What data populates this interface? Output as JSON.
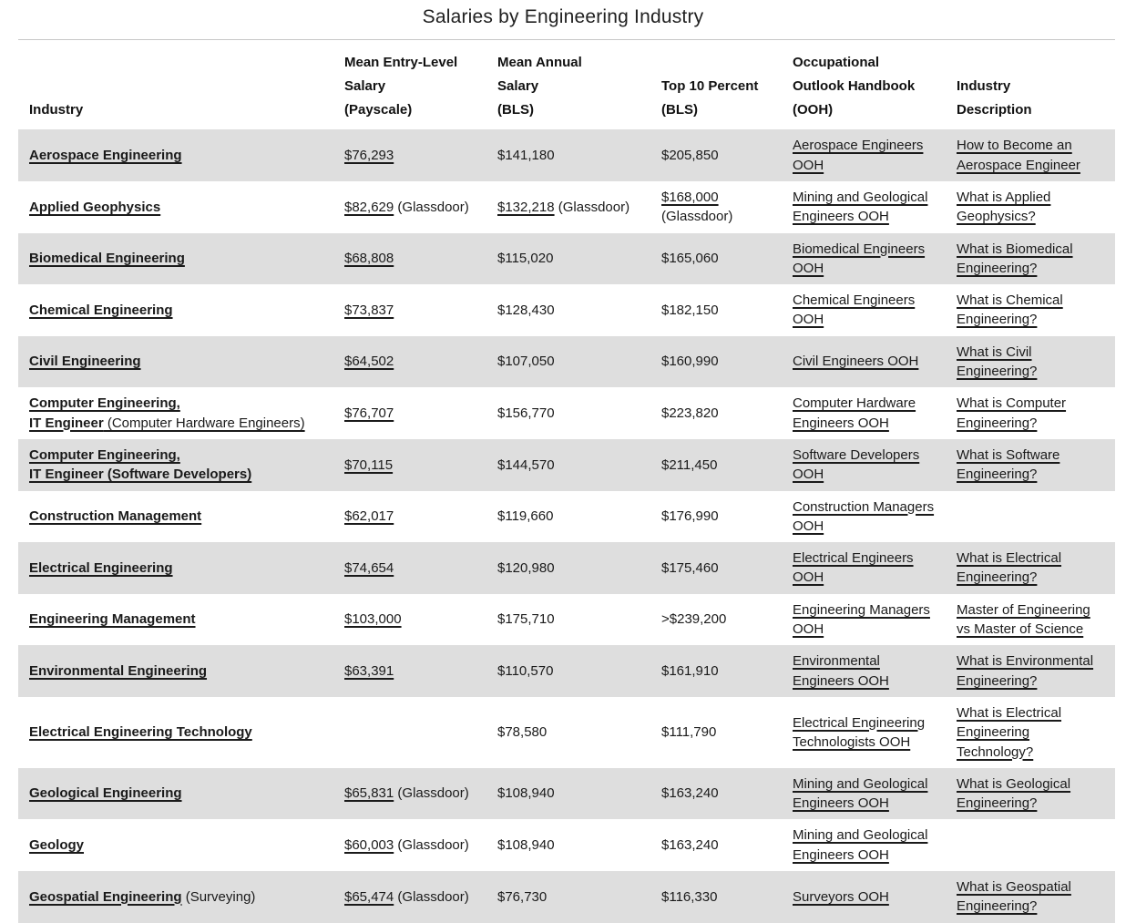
{
  "title": "Salaries by Engineering Industry",
  "colors": {
    "stripe": "#dedede",
    "row_alt": "#ffffff",
    "border_top": "#c8c8c8",
    "text": "#1a1a1a"
  },
  "table": {
    "columns": [
      {
        "key": "industry",
        "header_lines": [
          "Industry"
        ]
      },
      {
        "key": "entry-level-salary",
        "header_lines": [
          "Mean Entry-Level",
          "Salary",
          "(Payscale)"
        ]
      },
      {
        "key": "mean-annual-salary",
        "header_lines": [
          "Mean Annual",
          "Salary",
          "(BLS)"
        ]
      },
      {
        "key": "top-10-percent",
        "header_lines": [
          "Top 10 Percent",
          "(BLS)"
        ]
      },
      {
        "key": "ooh",
        "header_lines": [
          "Occupational",
          "Outlook Handbook",
          "(OOH)"
        ]
      },
      {
        "key": "industry-description",
        "header_lines": [
          "Industry",
          "Description"
        ]
      }
    ],
    "rows": [
      {
        "cells": [
          [
            {
              "text": "Aerospace Engineering",
              "bold": true,
              "underline": true
            }
          ],
          [
            {
              "text": "$76,293",
              "underline": true
            }
          ],
          [
            {
              "text": "$141,180"
            }
          ],
          [
            {
              "text": "$205,850"
            }
          ],
          [
            {
              "text": "Aerospace Engineers OOH",
              "underline": true
            }
          ],
          [
            {
              "text": "How to Become an Aerospace Engineer",
              "underline": true
            }
          ]
        ]
      },
      {
        "cells": [
          [
            {
              "text": "Applied Geophysics",
              "bold": true,
              "underline": true
            }
          ],
          [
            {
              "text": "$82,629",
              "underline": true
            },
            {
              "text": " (Glassdoor)"
            }
          ],
          [
            {
              "text": "$132,218",
              "underline": true
            },
            {
              "text": " (Glassdoor)"
            }
          ],
          [
            {
              "text": "$168,000",
              "underline": true
            },
            {
              "text": " (Glassdoor)"
            }
          ],
          [
            {
              "text": "Mining and Geological Engineers OOH",
              "underline": true
            }
          ],
          [
            {
              "text": "What is Applied Geophysics?",
              "underline": true
            }
          ]
        ]
      },
      {
        "cells": [
          [
            {
              "text": "Biomedical Engineering",
              "bold": true,
              "underline": true
            }
          ],
          [
            {
              "text": "$68,808",
              "underline": true
            }
          ],
          [
            {
              "text": "$115,020"
            }
          ],
          [
            {
              "text": "$165,060"
            }
          ],
          [
            {
              "text": "Biomedical Engineers OOH",
              "underline": true
            }
          ],
          [
            {
              "text": "What is Biomedical Engineering?",
              "underline": true
            }
          ]
        ]
      },
      {
        "cells": [
          [
            {
              "text": "Chemical Engineering",
              "bold": true,
              "underline": true
            }
          ],
          [
            {
              "text": "$73,837",
              "underline": true
            }
          ],
          [
            {
              "text": "$128,430"
            }
          ],
          [
            {
              "text": "$182,150"
            }
          ],
          [
            {
              "text": "Chemical Engineers OOH",
              "underline": true
            }
          ],
          [
            {
              "text": "What is Chemical Engineering?",
              "underline": true
            }
          ]
        ]
      },
      {
        "cells": [
          [
            {
              "text": "Civil Engineering",
              "bold": true,
              "underline": true
            }
          ],
          [
            {
              "text": "$64,502",
              "underline": true
            }
          ],
          [
            {
              "text": "$107,050"
            }
          ],
          [
            {
              "text": "$160,990"
            }
          ],
          [
            {
              "text": "Civil Engineers OOH",
              "underline": true
            }
          ],
          [
            {
              "text": "What is Civil Engineering?",
              "underline": true
            }
          ]
        ]
      },
      {
        "cells": [
          [
            {
              "text": "Computer Engineering,",
              "bold": true,
              "underline": true
            },
            {
              "br": true
            },
            {
              "text": "IT Engineer",
              "bold": true,
              "underline": true
            },
            {
              "text": " (Computer Hardware Engineers)",
              "underline": true
            }
          ],
          [
            {
              "text": "$76,707",
              "underline": true
            }
          ],
          [
            {
              "text": "$156,770"
            }
          ],
          [
            {
              "text": "$223,820"
            }
          ],
          [
            {
              "text": "Computer Hardware Engineers OOH",
              "underline": true
            }
          ],
          [
            {
              "text": "What is Computer Engineering?",
              "underline": true
            }
          ]
        ]
      },
      {
        "cells": [
          [
            {
              "text": "Computer Engineering,",
              "bold": true,
              "underline": true
            },
            {
              "br": true
            },
            {
              "text": "IT Engineer (Software Developers)",
              "bold": true,
              "underline": true
            }
          ],
          [
            {
              "text": "$70,115",
              "underline": true
            }
          ],
          [
            {
              "text": "$144,570"
            }
          ],
          [
            {
              "text": "$211,450"
            }
          ],
          [
            {
              "text": "Software Developers OOH",
              "underline": true
            }
          ],
          [
            {
              "text": "What is Software Engineering?",
              "underline": true
            }
          ]
        ]
      },
      {
        "cells": [
          [
            {
              "text": "Construction Management",
              "bold": true,
              "underline": true
            }
          ],
          [
            {
              "text": "$62,017",
              "underline": true
            }
          ],
          [
            {
              "text": "$119,660"
            }
          ],
          [
            {
              "text": "$176,990"
            }
          ],
          [
            {
              "text": "Construction Managers OOH",
              "underline": true
            }
          ],
          []
        ]
      },
      {
        "cells": [
          [
            {
              "text": "Electrical Engineering",
              "bold": true,
              "underline": true
            }
          ],
          [
            {
              "text": "$74,654",
              "underline": true
            }
          ],
          [
            {
              "text": "$120,980"
            }
          ],
          [
            {
              "text": "$175,460"
            }
          ],
          [
            {
              "text": "Electrical Engineers OOH",
              "underline": true
            }
          ],
          [
            {
              "text": "What is Electrical Engineering?",
              "underline": true
            }
          ]
        ]
      },
      {
        "cells": [
          [
            {
              "text": "Engineering Management",
              "bold": true,
              "underline": true
            }
          ],
          [
            {
              "text": "$103,000",
              "underline": true
            }
          ],
          [
            {
              "text": "$175,710"
            }
          ],
          [
            {
              "text": ">$239,200"
            }
          ],
          [
            {
              "text": "Engineering Managers OOH",
              "underline": true
            }
          ],
          [
            {
              "text": "Master of Engineering vs Master of Science",
              "underline": true
            }
          ]
        ]
      },
      {
        "cells": [
          [
            {
              "text": "Environmental Engineering",
              "bold": true,
              "underline": true
            }
          ],
          [
            {
              "text": "$63,391",
              "underline": true
            }
          ],
          [
            {
              "text": "$110,570"
            }
          ],
          [
            {
              "text": "$161,910"
            }
          ],
          [
            {
              "text": "Environmental Engineers OOH",
              "underline": true
            }
          ],
          [
            {
              "text": "What is Environmental Engineering?",
              "underline": true
            }
          ]
        ]
      },
      {
        "cells": [
          [
            {
              "text": "Electrical Engineering Technology",
              "bold": true,
              "underline": true
            }
          ],
          [],
          [
            {
              "text": "$78,580"
            }
          ],
          [
            {
              "text": "$111,790"
            }
          ],
          [
            {
              "text": "Electrical Engineering Technologists OOH",
              "underline": true
            }
          ],
          [
            {
              "text": "What is Electrical Engineering Technology?",
              "underline": true
            }
          ]
        ]
      },
      {
        "cells": [
          [
            {
              "text": "Geological Engineering",
              "bold": true,
              "underline": true
            }
          ],
          [
            {
              "text": "$65,831",
              "underline": true
            },
            {
              "text": " (Glassdoor)"
            }
          ],
          [
            {
              "text": "$108,940"
            }
          ],
          [
            {
              "text": "$163,240"
            }
          ],
          [
            {
              "text": "Mining and Geological Engineers OOH",
              "underline": true
            }
          ],
          [
            {
              "text": "What is Geological Engineering?",
              "underline": true
            }
          ]
        ]
      },
      {
        "cells": [
          [
            {
              "text": "Geology",
              "bold": true,
              "underline": true
            }
          ],
          [
            {
              "text": "$60,003",
              "underline": true
            },
            {
              "text": " (Glassdoor)"
            }
          ],
          [
            {
              "text": "$108,940"
            }
          ],
          [
            {
              "text": "$163,240"
            }
          ],
          [
            {
              "text": "Mining and Geological Engineers OOH",
              "underline": true
            }
          ],
          []
        ]
      },
      {
        "cells": [
          [
            {
              "text": "Geospatial Engineering",
              "bold": true,
              "underline": true
            },
            {
              "text": " (Surveying)"
            }
          ],
          [
            {
              "text": "$65,474",
              "underline": true
            },
            {
              "text": " (Glassdoor)"
            }
          ],
          [
            {
              "text": "$76,730"
            }
          ],
          [
            {
              "text": "$116,330"
            }
          ],
          [
            {
              "text": "Surveyors OOH",
              "underline": true
            }
          ],
          [
            {
              "text": "What is Geospatial Engineering?",
              "underline": true
            }
          ]
        ]
      }
    ]
  }
}
